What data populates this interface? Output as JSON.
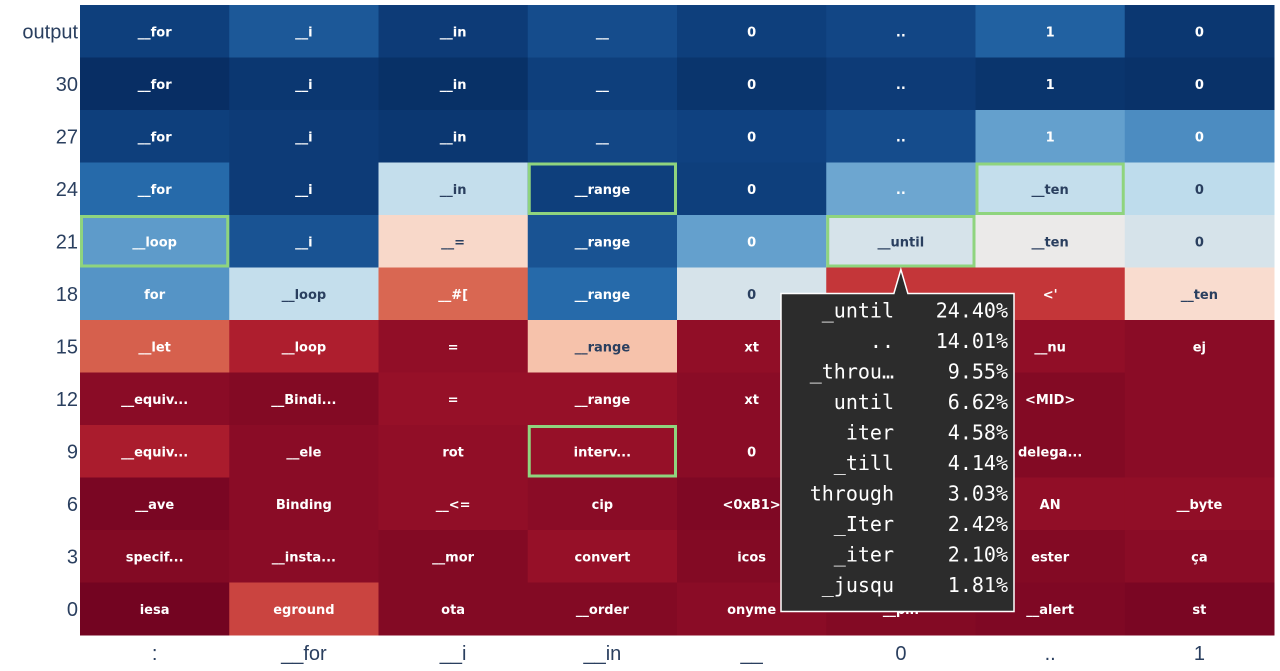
{
  "chart_data": {
    "type": "heatmap",
    "x_labels": [
      ":",
      "__for",
      "__i",
      "__in",
      "__",
      "0",
      "..",
      "1"
    ],
    "y_labels": [
      "output",
      "30",
      "27",
      "24",
      "21",
      "18",
      "15",
      "12",
      "9",
      "6",
      "3",
      "0"
    ],
    "colorscale": "RdBu",
    "cells": [
      [
        "__for",
        "__i",
        "__in",
        "__",
        "0",
        "..",
        "1",
        "0"
      ],
      [
        "__for",
        "__i",
        "__in",
        "__",
        "0",
        "..",
        "1",
        "0"
      ],
      [
        "__for",
        "__i",
        "__in",
        "__",
        "0",
        "..",
        "1",
        "0"
      ],
      [
        "__for",
        "__i",
        "__in",
        "__range",
        "0",
        "..",
        "__ten",
        "0"
      ],
      [
        "__loop",
        "__i",
        "__=",
        "__range",
        "0",
        "__until",
        "__ten",
        "0"
      ],
      [
        "for",
        "__loop",
        "__#[",
        "__range",
        "0",
        "",
        "<'",
        "__ten"
      ],
      [
        "__let",
        "__loop",
        "=",
        "__range",
        "xt",
        "",
        "__nu",
        "ej"
      ],
      [
        "__equiv...",
        "__Bindi...",
        "=",
        "__range",
        "xt",
        "",
        "<MID>",
        ""
      ],
      [
        "__equiv...",
        "__ele",
        "rot",
        "interv...",
        "0",
        "",
        "delega...",
        ""
      ],
      [
        "__ave",
        "Binding",
        "__<=",
        "cip",
        "<0xB1>",
        "",
        "AN",
        "__byte"
      ],
      [
        "specif...",
        "__insta...",
        "__mor",
        "convert",
        "icos",
        "",
        "ester",
        "ça"
      ],
      [
        "iesa",
        "eground",
        "ota",
        "__order",
        "onyme",
        "__pin",
        "__alert",
        "st"
      ]
    ],
    "values": [
      [
        0.82,
        0.7,
        0.85,
        0.75,
        0.82,
        0.78,
        0.66,
        0.88
      ],
      [
        0.95,
        0.88,
        0.93,
        0.82,
        0.9,
        0.85,
        0.9,
        0.92
      ],
      [
        0.82,
        0.85,
        0.88,
        0.78,
        0.8,
        0.75,
        0.4,
        0.48
      ],
      [
        0.62,
        0.85,
        0.18,
        0.82,
        0.82,
        0.38,
        0.18,
        0.2
      ],
      [
        0.42,
        0.72,
        -0.06,
        0.72,
        0.4,
        0.12,
        0.05,
        0.12
      ],
      [
        0.45,
        0.18,
        -0.38,
        0.62,
        0.12,
        -0.55,
        -0.55,
        -0.05
      ],
      [
        -0.4,
        -0.68,
        -0.82,
        -0.12,
        -0.82,
        -0.82,
        -0.82,
        -0.85
      ],
      [
        -0.85,
        -0.88,
        -0.8,
        -0.8,
        -0.85,
        -0.85,
        -0.88,
        -0.85
      ],
      [
        -0.7,
        -0.85,
        -0.82,
        -0.8,
        -0.85,
        -0.88,
        -0.88,
        -0.85
      ],
      [
        -0.92,
        -0.85,
        -0.82,
        -0.85,
        -0.9,
        -0.85,
        -0.82,
        -0.82
      ],
      [
        -0.88,
        -0.85,
        -0.88,
        -0.8,
        -0.88,
        -0.85,
        -0.88,
        -0.85
      ],
      [
        -0.95,
        -0.5,
        -0.88,
        -0.88,
        -0.85,
        -0.88,
        -0.9,
        -0.92
      ]
    ],
    "highlighted_cells": [
      [
        3,
        3
      ],
      [
        3,
        6
      ],
      [
        4,
        0
      ],
      [
        4,
        5
      ],
      [
        8,
        3
      ]
    ],
    "tooltip": {
      "row": 4,
      "col": 5,
      "entries": [
        {
          "token": "_until",
          "prob": "24.40%"
        },
        {
          "token": "..",
          "prob": "14.01%"
        },
        {
          "token": "_throu…",
          "prob": "9.55%"
        },
        {
          "token": "until",
          "prob": "6.62%"
        },
        {
          "token": "iter",
          "prob": "4.58%"
        },
        {
          "token": "_till",
          "prob": "4.14%"
        },
        {
          "token": "through",
          "prob": "3.03%"
        },
        {
          "token": "_Iter",
          "prob": "2.42%"
        },
        {
          "token": "_iter",
          "prob": "2.10%"
        },
        {
          "token": "_jusqu",
          "prob": "1.81%"
        }
      ]
    }
  },
  "colors": {
    "highlight_border": "#8fd47e",
    "tooltip_bg": "#2c2c2c",
    "tooltip_border": "#ffffff",
    "axis_text": "#2a3f5f"
  }
}
